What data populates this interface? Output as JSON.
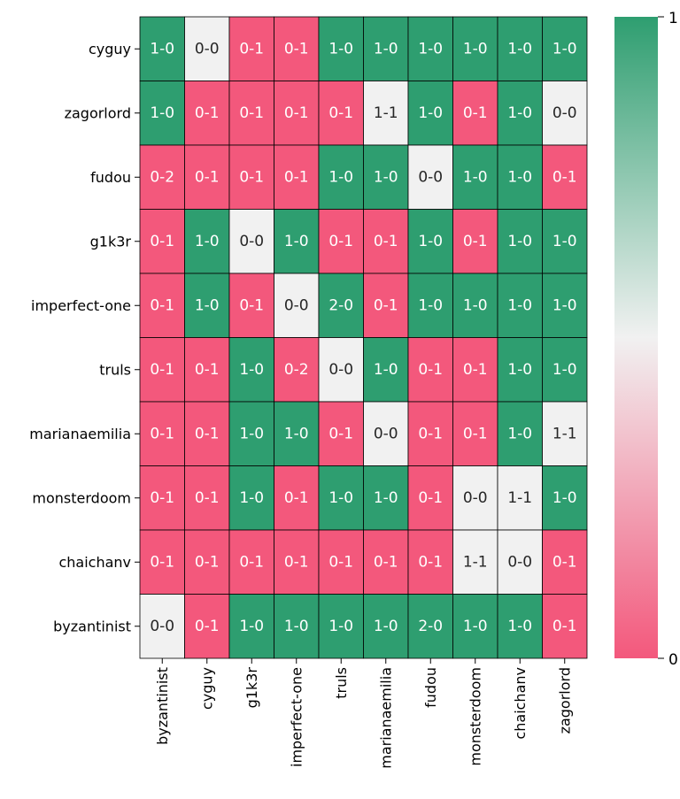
{
  "chart_data": {
    "type": "heatmap",
    "title": "",
    "xlabel": "",
    "ylabel": "",
    "rows": [
      "cyguy",
      "zagorlord",
      "fudou",
      "g1k3r",
      "imperfect-one",
      "truls",
      "marianaemilia",
      "monsterdoom",
      "chaichanv",
      "byzantinist"
    ],
    "columns": [
      "byzantinist",
      "cyguy",
      "g1k3r",
      "imperfect-one",
      "truls",
      "marianaemilia",
      "fudou",
      "monsterdoom",
      "chaichanv",
      "zagorlord"
    ],
    "cells": [
      [
        "1-0",
        "0-0",
        "0-1",
        "0-1",
        "1-0",
        "1-0",
        "1-0",
        "1-0",
        "1-0",
        "1-0"
      ],
      [
        "1-0",
        "0-1",
        "0-1",
        "0-1",
        "0-1",
        "1-1",
        "1-0",
        "0-1",
        "1-0",
        "0-0"
      ],
      [
        "0-2",
        "0-1",
        "0-1",
        "0-1",
        "1-0",
        "1-0",
        "0-0",
        "1-0",
        "1-0",
        "0-1"
      ],
      [
        "0-1",
        "1-0",
        "0-0",
        "1-0",
        "0-1",
        "0-1",
        "1-0",
        "0-1",
        "1-0",
        "1-0"
      ],
      [
        "0-1",
        "1-0",
        "0-1",
        "0-0",
        "2-0",
        "0-1",
        "1-0",
        "1-0",
        "1-0",
        "1-0"
      ],
      [
        "0-1",
        "0-1",
        "1-0",
        "0-2",
        "0-0",
        "1-0",
        "0-1",
        "0-1",
        "1-0",
        "1-0"
      ],
      [
        "0-1",
        "0-1",
        "1-0",
        "1-0",
        "0-1",
        "0-0",
        "0-1",
        "0-1",
        "1-0",
        "1-1"
      ],
      [
        "0-1",
        "0-1",
        "1-0",
        "0-1",
        "1-0",
        "1-0",
        "0-1",
        "0-0",
        "1-1",
        "1-0"
      ],
      [
        "0-1",
        "0-1",
        "0-1",
        "0-1",
        "0-1",
        "0-1",
        "0-1",
        "1-1",
        "0-0",
        "0-1"
      ],
      [
        "0-0",
        "0-1",
        "1-0",
        "1-0",
        "1-0",
        "1-0",
        "2-0",
        "1-0",
        "1-0",
        "0-1"
      ]
    ],
    "values": [
      [
        1,
        0.5,
        0,
        0,
        1,
        1,
        1,
        1,
        1,
        1
      ],
      [
        1,
        0,
        0,
        0,
        0,
        0.5,
        1,
        0,
        1,
        0.5
      ],
      [
        0,
        0,
        0,
        0,
        1,
        1,
        0.5,
        1,
        1,
        0
      ],
      [
        0,
        1,
        0.5,
        1,
        0,
        0,
        1,
        0,
        1,
        1
      ],
      [
        0,
        1,
        0,
        0.5,
        1,
        0,
        1,
        1,
        1,
        1
      ],
      [
        0,
        0,
        1,
        0,
        0.5,
        1,
        0,
        0,
        1,
        1
      ],
      [
        0,
        0,
        1,
        1,
        0,
        0.5,
        0,
        0,
        1,
        0.5
      ],
      [
        0,
        0,
        1,
        0,
        1,
        1,
        0,
        0.5,
        0.5,
        1
      ],
      [
        0,
        0,
        0,
        0,
        0,
        0,
        0,
        0.5,
        0.5,
        0
      ],
      [
        0.5,
        0,
        1,
        1,
        1,
        1,
        1,
        1,
        1,
        0
      ]
    ],
    "colorbar": {
      "min": 0,
      "max": 1,
      "ticks": [
        "0",
        "1"
      ]
    },
    "colors": {
      "low": "#f3587c",
      "mid": "#f1f1f1",
      "high": "#2e9e70"
    },
    "grid": true,
    "legend": "right"
  }
}
